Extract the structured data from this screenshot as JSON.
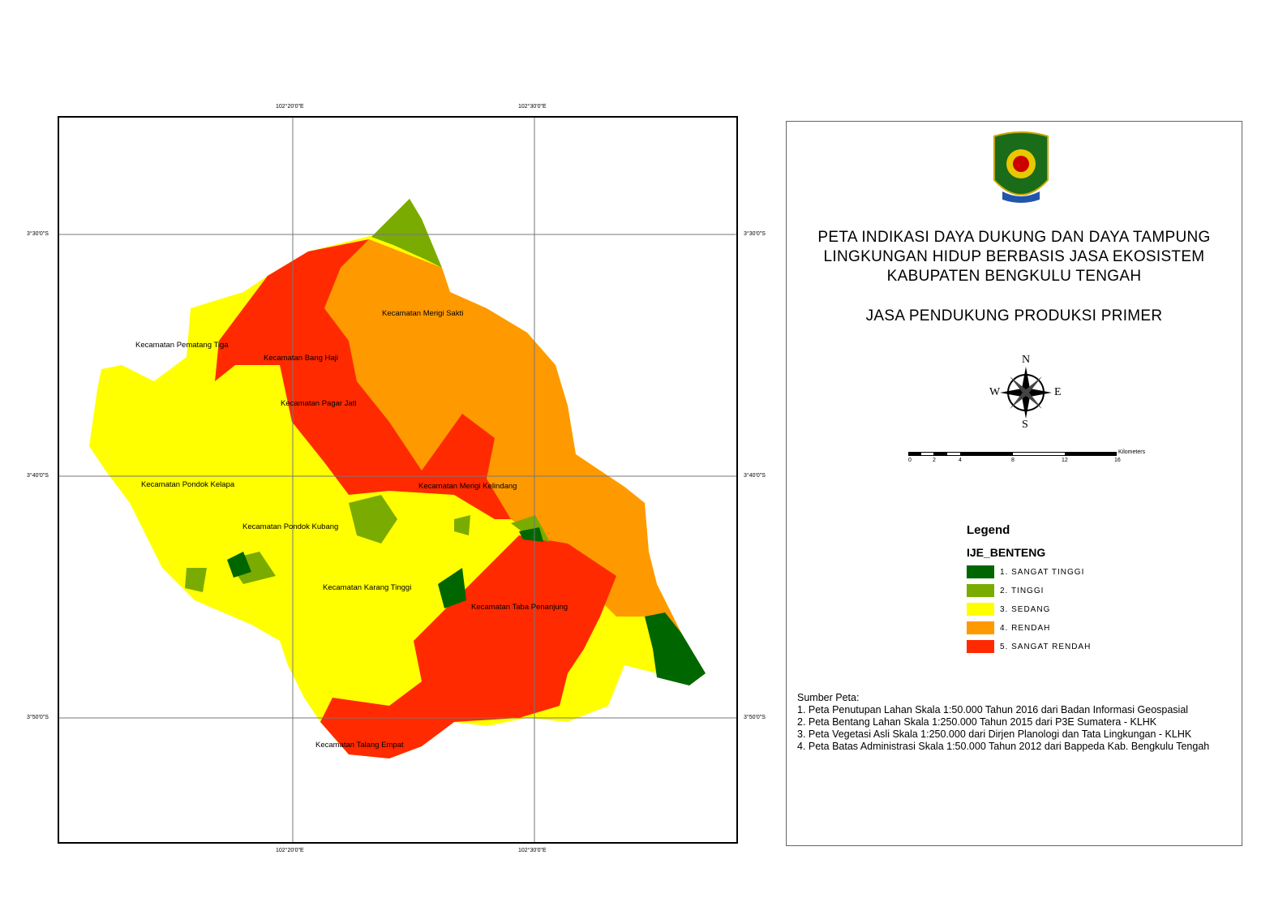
{
  "map": {
    "graticule": {
      "top_labels": [
        "102°20'0\"E",
        "102°30'0\"E"
      ],
      "bottom_labels": [
        "102°20'0\"E",
        "102°30'0\"E"
      ],
      "left_labels": [
        "3°30'0\"S",
        "3°40'0\"S",
        "3°50'0\"S"
      ],
      "right_labels": [
        "3°30'0\"S",
        "3°40'0\"S",
        "3°50'0\"S"
      ]
    },
    "district_labels": [
      "Kecamatan Merigi Sakti",
      "Kecamatan Pematang Tiga",
      "Kecamatan Bang Haji",
      "Kecamatan Pagar Jati",
      "Kecamatan Pondok Kelapa",
      "Kecamatan Merigi Kelindang",
      "Kecamatan Pondok Kubang",
      "Kecamatan Karang Tinggi",
      "Kecamatan Taba Penanjung",
      "Kecamatan Talang Empat"
    ]
  },
  "panel": {
    "logo": "Kabupaten Bengkulu Tengah coat of arms",
    "title_lines": [
      "PETA INDIKASI DAYA DUKUNG DAN DAYA TAMPUNG",
      "LINGKUNGAN HIDUP BERBASIS JASA EKOSISTEM",
      "KABUPATEN BENGKULU TENGAH"
    ],
    "subtitle": "JASA PENDUKUNG PRODUKSI PRIMER",
    "north_arrow": {
      "n": "N",
      "s": "S",
      "e": "E",
      "w": "W"
    },
    "scale_bar": {
      "ticks": [
        "0",
        "2",
        "4",
        "8",
        "12",
        "16"
      ],
      "unit": "Kilometers"
    },
    "legend": {
      "title": "Legend",
      "layer": "IJE_BENTENG",
      "items": [
        {
          "label": "1. SANGAT TINGGI",
          "color": "#006600"
        },
        {
          "label": "2. TINGGI",
          "color": "#7aab00"
        },
        {
          "label": "3. SEDANG",
          "color": "#ffff00"
        },
        {
          "label": "4. RENDAH",
          "color": "#ff9900"
        },
        {
          "label": "5. SANGAT RENDAH",
          "color": "#ff2a00"
        }
      ]
    },
    "sources": {
      "heading": "Sumber Peta:",
      "items": [
        "1. Peta Penutupan Lahan Skala 1:50.000 Tahun 2016 dari Badan Informasi Geospasial",
        "2. Peta Bentang Lahan Skala 1:250.000 Tahun 2015 dari  P3E Sumatera - KLHK",
        "3. Peta Vegetasi Asli Skala 1:250.000 dari Dirjen Planologi dan Tata Lingkungan - KLHK",
        "4. Peta Batas Administrasi Skala 1:50.000 Tahun 2012 dari Bappeda Kab. Bengkulu Tengah"
      ]
    }
  }
}
